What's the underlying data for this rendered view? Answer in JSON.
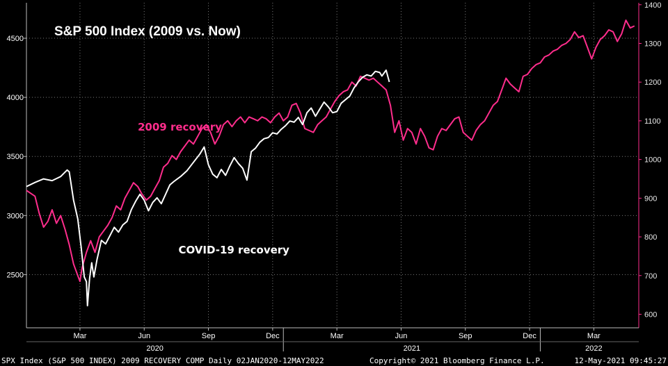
{
  "chart_data": {
    "type": "line",
    "title": "S&P 500 Index (2009 vs. Now)",
    "colors": {
      "background": "#000000",
      "covid": "#ffffff",
      "recovery2009": "#ff2d8c",
      "grid": "#7a7a7a"
    },
    "left_axis": {
      "ylim": [
        2050,
        4800
      ],
      "ticks": [
        2500,
        3000,
        3500,
        4000,
        4500
      ]
    },
    "right_axis": {
      "ylim": [
        565,
        1405
      ],
      "ticks": [
        600,
        700,
        800,
        900,
        1000,
        1100,
        1200,
        1300,
        1400
      ]
    },
    "x_axis": {
      "xlim": [
        0,
        28.6
      ],
      "month_ticks": [
        {
          "label": "Mar",
          "x": 2.5
        },
        {
          "label": "Jun",
          "x": 5.5
        },
        {
          "label": "Sep",
          "x": 8.5
        },
        {
          "label": "Dec",
          "x": 11.5
        },
        {
          "label": "Mar",
          "x": 14.5
        },
        {
          "label": "Jun",
          "x": 17.5
        },
        {
          "label": "Sep",
          "x": 20.5
        },
        {
          "label": "Dec",
          "x": 23.5
        },
        {
          "label": "Mar",
          "x": 26.5
        }
      ],
      "year_labels": [
        {
          "label": "2020",
          "x": 6
        },
        {
          "label": "2021",
          "x": 18
        },
        {
          "label": "2022",
          "x": 26.5
        }
      ],
      "year_separators": [
        12,
        24
      ]
    },
    "series": [
      {
        "name": "COVID-19 recovery",
        "axis": "left",
        "points": [
          [
            0.0,
            3245
          ],
          [
            0.4,
            3280
          ],
          [
            0.8,
            3310
          ],
          [
            1.2,
            3295
          ],
          [
            1.6,
            3330
          ],
          [
            1.9,
            3385
          ],
          [
            2.0,
            3370
          ],
          [
            2.2,
            3130
          ],
          [
            2.4,
            2970
          ],
          [
            2.55,
            2740
          ],
          [
            2.7,
            2480
          ],
          [
            2.8,
            2440
          ],
          [
            2.85,
            2237
          ],
          [
            2.95,
            2470
          ],
          [
            3.05,
            2600
          ],
          [
            3.15,
            2480
          ],
          [
            3.3,
            2630
          ],
          [
            3.5,
            2790
          ],
          [
            3.7,
            2760
          ],
          [
            3.9,
            2830
          ],
          [
            4.1,
            2900
          ],
          [
            4.3,
            2860
          ],
          [
            4.5,
            2920
          ],
          [
            4.7,
            2950
          ],
          [
            4.9,
            3050
          ],
          [
            5.1,
            3120
          ],
          [
            5.3,
            3180
          ],
          [
            5.5,
            3130
          ],
          [
            5.7,
            3040
          ],
          [
            5.9,
            3110
          ],
          [
            6.1,
            3150
          ],
          [
            6.3,
            3100
          ],
          [
            6.5,
            3180
          ],
          [
            6.7,
            3260
          ],
          [
            6.9,
            3290
          ],
          [
            7.2,
            3330
          ],
          [
            7.5,
            3380
          ],
          [
            7.8,
            3450
          ],
          [
            8.1,
            3520
          ],
          [
            8.3,
            3580
          ],
          [
            8.5,
            3430
          ],
          [
            8.7,
            3350
          ],
          [
            8.9,
            3320
          ],
          [
            9.1,
            3390
          ],
          [
            9.3,
            3340
          ],
          [
            9.5,
            3420
          ],
          [
            9.7,
            3490
          ],
          [
            9.9,
            3440
          ],
          [
            10.1,
            3400
          ],
          [
            10.3,
            3300
          ],
          [
            10.5,
            3540
          ],
          [
            10.7,
            3570
          ],
          [
            10.9,
            3620
          ],
          [
            11.1,
            3650
          ],
          [
            11.3,
            3660
          ],
          [
            11.5,
            3700
          ],
          [
            11.7,
            3690
          ],
          [
            11.9,
            3730
          ],
          [
            12.1,
            3760
          ],
          [
            12.3,
            3800
          ],
          [
            12.5,
            3790
          ],
          [
            12.7,
            3830
          ],
          [
            12.9,
            3770
          ],
          [
            13.1,
            3870
          ],
          [
            13.3,
            3910
          ],
          [
            13.5,
            3840
          ],
          [
            13.7,
            3900
          ],
          [
            13.9,
            3960
          ],
          [
            14.1,
            3920
          ],
          [
            14.3,
            3870
          ],
          [
            14.5,
            3880
          ],
          [
            14.7,
            3950
          ],
          [
            14.9,
            3980
          ],
          [
            15.1,
            4010
          ],
          [
            15.3,
            4080
          ],
          [
            15.5,
            4130
          ],
          [
            15.7,
            4170
          ],
          [
            15.9,
            4190
          ],
          [
            16.1,
            4180
          ],
          [
            16.3,
            4220
          ],
          [
            16.5,
            4210
          ],
          [
            16.6,
            4180
          ],
          [
            16.8,
            4230
          ],
          [
            16.95,
            4130
          ]
        ]
      },
      {
        "name": "2009 recovery",
        "axis": "right",
        "points": [
          [
            0.0,
            920
          ],
          [
            0.4,
            905
          ],
          [
            0.6,
            860
          ],
          [
            0.8,
            825
          ],
          [
            1.0,
            840
          ],
          [
            1.2,
            870
          ],
          [
            1.4,
            835
          ],
          [
            1.6,
            855
          ],
          [
            1.8,
            820
          ],
          [
            2.0,
            780
          ],
          [
            2.2,
            730
          ],
          [
            2.4,
            700
          ],
          [
            2.5,
            685
          ],
          [
            2.6,
            720
          ],
          [
            2.8,
            760
          ],
          [
            3.0,
            790
          ],
          [
            3.2,
            760
          ],
          [
            3.4,
            800
          ],
          [
            3.6,
            815
          ],
          [
            3.8,
            830
          ],
          [
            4.0,
            850
          ],
          [
            4.2,
            880
          ],
          [
            4.4,
            870
          ],
          [
            4.6,
            900
          ],
          [
            4.8,
            920
          ],
          [
            5.0,
            940
          ],
          [
            5.2,
            930
          ],
          [
            5.4,
            910
          ],
          [
            5.6,
            895
          ],
          [
            5.8,
            905
          ],
          [
            6.0,
            925
          ],
          [
            6.2,
            945
          ],
          [
            6.4,
            980
          ],
          [
            6.6,
            990
          ],
          [
            6.8,
            1010
          ],
          [
            7.0,
            1000
          ],
          [
            7.2,
            1020
          ],
          [
            7.4,
            1035
          ],
          [
            7.6,
            1050
          ],
          [
            7.8,
            1040
          ],
          [
            8.0,
            1060
          ],
          [
            8.2,
            1080
          ],
          [
            8.4,
            1090
          ],
          [
            8.6,
            1070
          ],
          [
            8.8,
            1040
          ],
          [
            9.0,
            1060
          ],
          [
            9.2,
            1090
          ],
          [
            9.4,
            1100
          ],
          [
            9.6,
            1085
          ],
          [
            9.8,
            1100
          ],
          [
            10.0,
            1110
          ],
          [
            10.2,
            1095
          ],
          [
            10.4,
            1110
          ],
          [
            10.6,
            1105
          ],
          [
            10.8,
            1100
          ],
          [
            11.0,
            1110
          ],
          [
            11.2,
            1105
          ],
          [
            11.4,
            1095
          ],
          [
            11.6,
            1110
          ],
          [
            11.8,
            1120
          ],
          [
            12.0,
            1100
          ],
          [
            12.2,
            1110
          ],
          [
            12.4,
            1140
          ],
          [
            12.6,
            1145
          ],
          [
            12.8,
            1120
          ],
          [
            13.0,
            1080
          ],
          [
            13.2,
            1075
          ],
          [
            13.4,
            1070
          ],
          [
            13.6,
            1090
          ],
          [
            13.8,
            1100
          ],
          [
            14.0,
            1110
          ],
          [
            14.2,
            1130
          ],
          [
            14.4,
            1150
          ],
          [
            14.6,
            1165
          ],
          [
            14.8,
            1175
          ],
          [
            15.0,
            1180
          ],
          [
            15.2,
            1200
          ],
          [
            15.4,
            1190
          ],
          [
            15.6,
            1215
          ],
          [
            15.8,
            1210
          ],
          [
            16.0,
            1205
          ],
          [
            16.2,
            1210
          ],
          [
            16.4,
            1200
          ],
          [
            16.6,
            1190
          ],
          [
            16.8,
            1180
          ],
          [
            17.0,
            1140
          ],
          [
            17.2,
            1070
          ],
          [
            17.4,
            1100
          ],
          [
            17.6,
            1050
          ],
          [
            17.8,
            1080
          ],
          [
            18.0,
            1070
          ],
          [
            18.2,
            1040
          ],
          [
            18.4,
            1080
          ],
          [
            18.6,
            1060
          ],
          [
            18.8,
            1030
          ],
          [
            19.0,
            1025
          ],
          [
            19.2,
            1060
          ],
          [
            19.4,
            1080
          ],
          [
            19.6,
            1075
          ],
          [
            19.8,
            1090
          ],
          [
            20.0,
            1105
          ],
          [
            20.2,
            1110
          ],
          [
            20.4,
            1070
          ],
          [
            20.6,
            1060
          ],
          [
            20.8,
            1050
          ],
          [
            21.0,
            1075
          ],
          [
            21.2,
            1090
          ],
          [
            21.4,
            1100
          ],
          [
            21.6,
            1120
          ],
          [
            21.8,
            1140
          ],
          [
            22.0,
            1150
          ],
          [
            22.2,
            1180
          ],
          [
            22.4,
            1210
          ],
          [
            22.6,
            1195
          ],
          [
            22.8,
            1185
          ],
          [
            23.0,
            1175
          ],
          [
            23.2,
            1215
          ],
          [
            23.4,
            1220
          ],
          [
            23.6,
            1235
          ],
          [
            23.8,
            1245
          ],
          [
            24.0,
            1250
          ],
          [
            24.2,
            1265
          ],
          [
            24.4,
            1270
          ],
          [
            24.6,
            1280
          ],
          [
            24.8,
            1285
          ],
          [
            25.0,
            1295
          ],
          [
            25.2,
            1300
          ],
          [
            25.4,
            1310
          ],
          [
            25.6,
            1330
          ],
          [
            25.8,
            1315
          ],
          [
            26.0,
            1320
          ],
          [
            26.2,
            1290
          ],
          [
            26.4,
            1260
          ],
          [
            26.6,
            1290
          ],
          [
            26.8,
            1310
          ],
          [
            27.0,
            1320
          ],
          [
            27.2,
            1335
          ],
          [
            27.4,
            1330
          ],
          [
            27.6,
            1305
          ],
          [
            27.8,
            1325
          ],
          [
            28.0,
            1360
          ],
          [
            28.2,
            1340
          ],
          [
            28.4,
            1345
          ]
        ]
      }
    ],
    "annotations": [
      {
        "name": "recovery-2009-label",
        "text": "2009 recovery",
        "color": "#ff2d8c",
        "x": 5.2,
        "y_left": 3720
      },
      {
        "name": "covid-label",
        "text": "COVID-19 recovery",
        "color": "#ffffff",
        "x": 7.1,
        "y_left": 2680
      }
    ]
  },
  "footer": {
    "left": "SPX Index (S&P 500 INDEX) 2009 RECOVERY COMP  Daily 02JAN2020-12MAY2022",
    "center": "Copyright© 2021 Bloomberg Finance L.P.",
    "right": "12-May-2021 09:45:27"
  }
}
